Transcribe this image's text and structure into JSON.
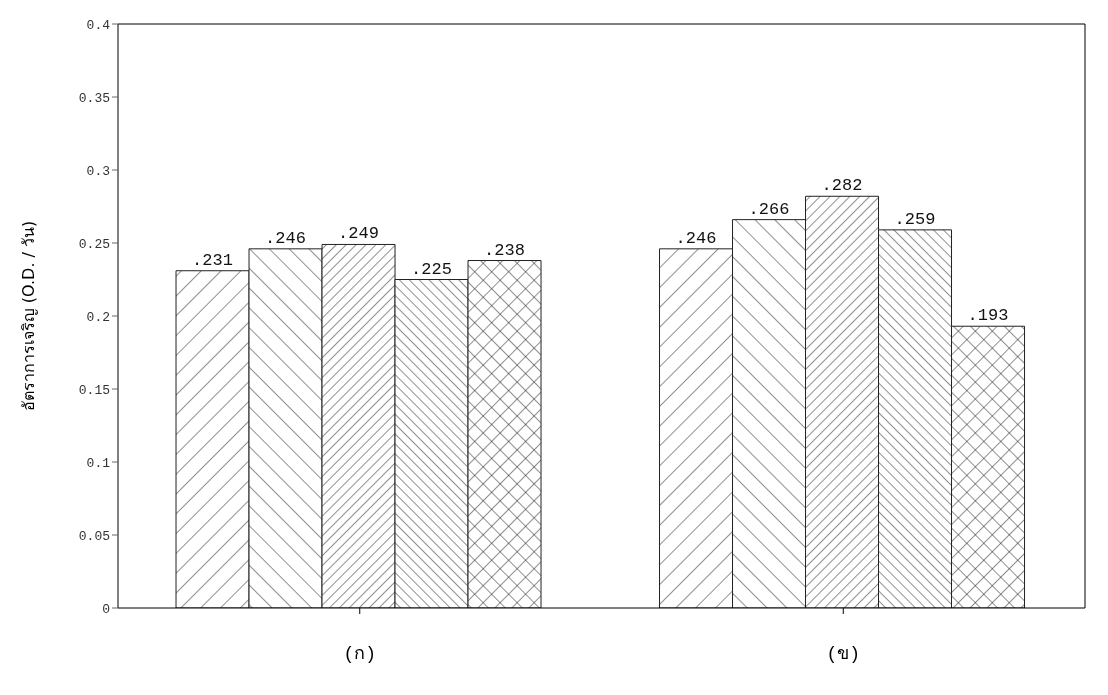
{
  "chart_data": {
    "type": "bar",
    "ylabel": "อัตราการเจริญ (O.D. / วัน)",
    "categories": [
      "(ก)",
      "(ข)"
    ],
    "series": [
      {
        "color": "#222222",
        "values": [
          0.231,
          0.246
        ],
        "value_labels": [
          ".231",
          ".246"
        ]
      },
      {
        "color": "#222222",
        "values": [
          0.246,
          0.266
        ],
        "value_labels": [
          ".246",
          ".266"
        ]
      },
      {
        "color": "#222222",
        "values": [
          0.249,
          0.282
        ],
        "value_labels": [
          ".249",
          ".282"
        ]
      },
      {
        "color": "#222222",
        "values": [
          0.225,
          0.259
        ],
        "value_labels": [
          ".225",
          ".259"
        ]
      },
      {
        "color": "#222222",
        "values": [
          0.238,
          0.193
        ],
        "value_labels": [
          ".238",
          ".193"
        ]
      }
    ],
    "ylim": [
      0,
      0.4
    ],
    "yticks": [
      0,
      0.05,
      0.1,
      0.15,
      0.2,
      0.25,
      0.3,
      0.35,
      0.4
    ]
  }
}
